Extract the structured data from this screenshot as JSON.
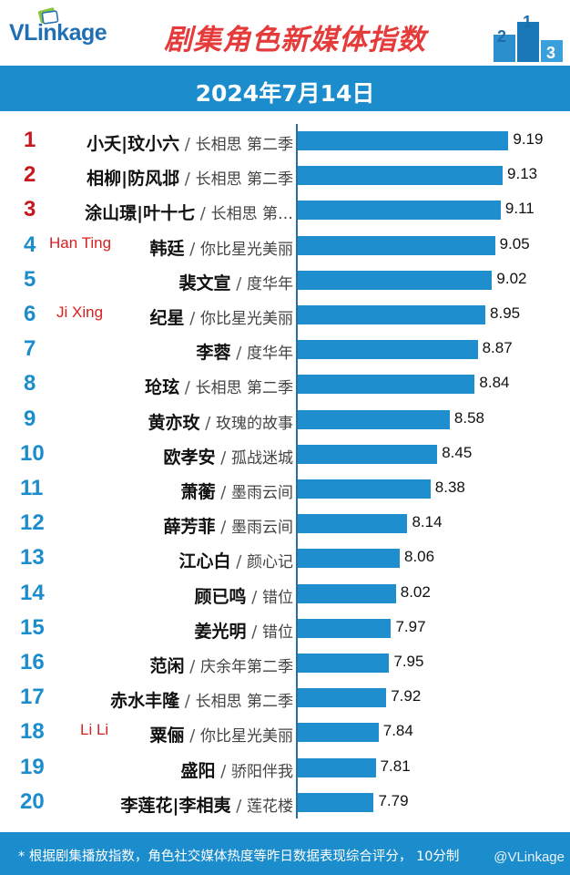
{
  "header": {
    "logo": "VLinkage",
    "title": "剧集角色新媒体指数"
  },
  "date": "2024年7月14日",
  "chart_data": {
    "type": "bar",
    "orientation": "horizontal",
    "title": "剧集角色新媒体指数",
    "subtitle": "2024年7月14日",
    "xlim": [
      7.0,
      9.3
    ],
    "rows": [
      {
        "rank": "1",
        "name": "小夭|玟小六",
        "drama": "长相思 第二季",
        "value": 9.19,
        "value_label": "9.19",
        "annotation": ""
      },
      {
        "rank": "2",
        "name": "相柳|防风邶",
        "drama": "长相思 第二季",
        "value": 9.13,
        "value_label": "9.13",
        "annotation": ""
      },
      {
        "rank": "3",
        "name": "涂山璟|叶十七",
        "drama": "长相思 第…",
        "value": 9.11,
        "value_label": "9.11",
        "annotation": ""
      },
      {
        "rank": "4",
        "name": "韩廷",
        "drama": "你比星光美丽",
        "value": 9.05,
        "value_label": "9.05",
        "annotation": "Han Ting"
      },
      {
        "rank": "5",
        "name": "裴文宣",
        "drama": "度华年",
        "value": 9.02,
        "value_label": "9.02",
        "annotation": ""
      },
      {
        "rank": "6",
        "name": "纪星",
        "drama": "你比星光美丽",
        "value": 8.95,
        "value_label": "8.95",
        "annotation": "Ji Xing"
      },
      {
        "rank": "7",
        "name": "李蓉",
        "drama": "度华年",
        "value": 8.87,
        "value_label": "8.87",
        "annotation": ""
      },
      {
        "rank": "8",
        "name": "玱玹",
        "drama": "长相思 第二季",
        "value": 8.84,
        "value_label": "8.84",
        "annotation": ""
      },
      {
        "rank": "9",
        "name": "黄亦玫",
        "drama": "玫瑰的故事",
        "value": 8.58,
        "value_label": "8.58",
        "annotation": ""
      },
      {
        "rank": "10",
        "name": "欧孝安",
        "drama": "孤战迷城",
        "value": 8.45,
        "value_label": "8.45",
        "annotation": ""
      },
      {
        "rank": "11",
        "name": "萧蘅",
        "drama": "墨雨云间",
        "value": 8.38,
        "value_label": "8.38",
        "annotation": ""
      },
      {
        "rank": "12",
        "name": "薛芳菲",
        "drama": "墨雨云间",
        "value": 8.14,
        "value_label": "8.14",
        "annotation": ""
      },
      {
        "rank": "13",
        "name": "江心白",
        "drama": "颜心记",
        "value": 8.06,
        "value_label": "8.06",
        "annotation": ""
      },
      {
        "rank": "14",
        "name": "顾已鸣",
        "drama": "错位",
        "value": 8.02,
        "value_label": "8.02",
        "annotation": ""
      },
      {
        "rank": "15",
        "name": "姜光明",
        "drama": "错位",
        "value": 7.97,
        "value_label": "7.97",
        "annotation": ""
      },
      {
        "rank": "16",
        "name": "范闲",
        "drama": "庆余年第二季",
        "value": 7.95,
        "value_label": "7.95",
        "annotation": ""
      },
      {
        "rank": "17",
        "name": "赤水丰隆",
        "drama": "长相思 第二季",
        "value": 7.92,
        "value_label": "7.92",
        "annotation": ""
      },
      {
        "rank": "18",
        "name": "粟俪",
        "drama": "你比星光美丽",
        "value": 7.84,
        "value_label": "7.84",
        "annotation": "Li Li"
      },
      {
        "rank": "19",
        "name": "盛阳",
        "drama": "骄阳伴我",
        "value": 7.81,
        "value_label": "7.81",
        "annotation": ""
      },
      {
        "rank": "20",
        "name": "李莲花|李相夷",
        "drama": "莲花楼",
        "value": 7.79,
        "value_label": "7.79",
        "annotation": ""
      }
    ],
    "colors": {
      "bar": "#1f8ecf",
      "rank_top": "#c8161d",
      "rank_rest": "#1b8ccc",
      "annotation": "#d82020",
      "band": "#1b8ccc"
    }
  },
  "footer": {
    "note": "* 根据剧集播放指数，角色社交媒体热度等昨日数据表现综合评分， 10分制",
    "watermark": "@VLinkage"
  }
}
